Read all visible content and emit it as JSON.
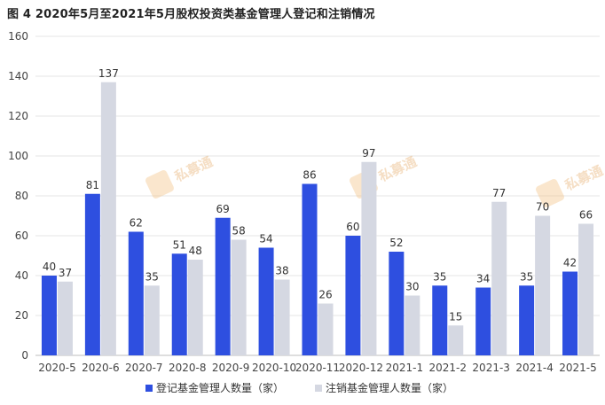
{
  "chart_data": {
    "type": "bar",
    "title": "图 4 2020年5月至2021年5月股权投资类基金管理人登记和注销情况",
    "categories": [
      "2020-5",
      "2020-6",
      "2020-7",
      "2020-8",
      "2020-9",
      "2020-10",
      "2020-11",
      "2020-12",
      "2021-1",
      "2021-2",
      "2021-3",
      "2021-4",
      "2021-5"
    ],
    "series": [
      {
        "name": "登记基金管理人数量（家）",
        "values": [
          40,
          81,
          62,
          51,
          69,
          54,
          86,
          60,
          52,
          35,
          34,
          35,
          42
        ],
        "color": "#2e4fe0"
      },
      {
        "name": "注销基金管理人数量（家）",
        "values": [
          37,
          137,
          35,
          48,
          58,
          38,
          26,
          97,
          30,
          15,
          77,
          70,
          66
        ],
        "color": "#d5d8e2"
      }
    ],
    "ylim": [
      0,
      160
    ],
    "yticks": [
      0,
      20,
      40,
      60,
      80,
      100,
      120,
      140,
      160
    ],
    "grid": true,
    "legend": "bottom-center"
  },
  "watermark": {
    "text": "私募通",
    "icon": "private-equity-logo-icon"
  }
}
